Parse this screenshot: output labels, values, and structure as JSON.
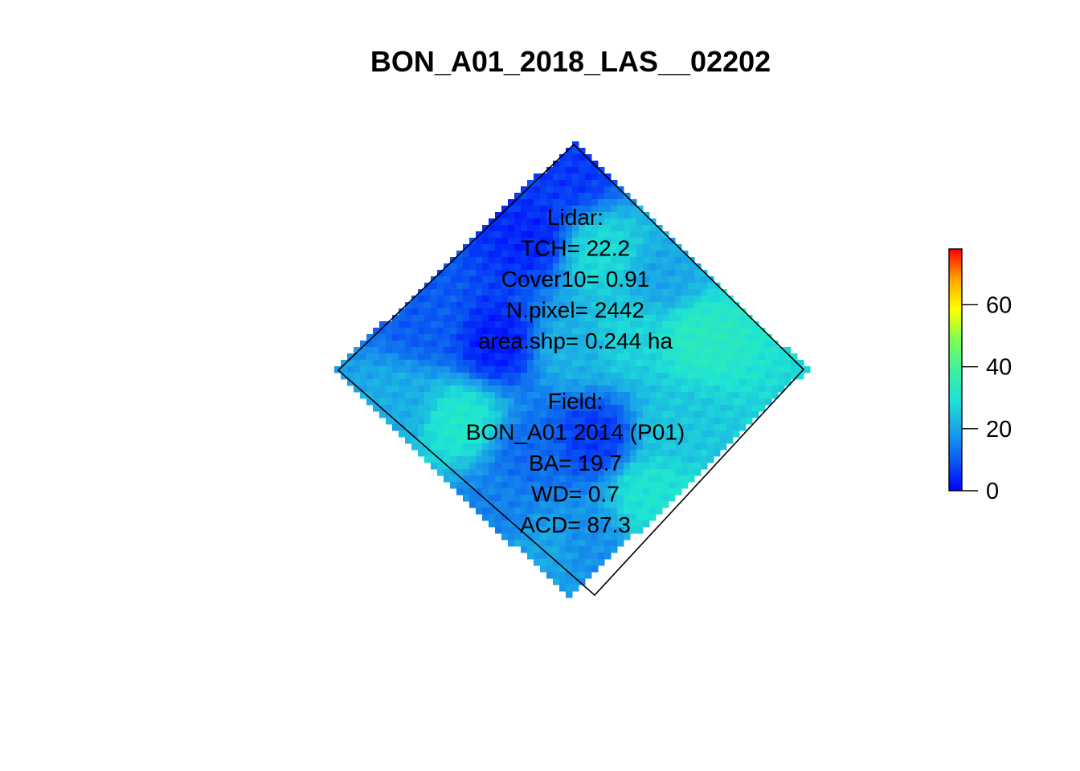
{
  "chart_data": {
    "type": "heatmap",
    "title": "BON_A01_2018_LAS__02202",
    "palette": [
      "#0000ff",
      "#0a5bf2",
      "#1aa3e8",
      "#1ee3d4",
      "#3df0a0",
      "#7dff50",
      "#ffff00",
      "#ffa500",
      "#ff0000"
    ],
    "colorbar": {
      "min": 0,
      "max": 78,
      "ticks": [
        0,
        20,
        40,
        60
      ]
    },
    "legend_placement": "right",
    "grid": false,
    "raster_hotspots": [
      {
        "u": 0.06,
        "v": 0.06,
        "value": 6
      },
      {
        "u": 0.12,
        "v": 0.3,
        "value": 4
      },
      {
        "u": 0.3,
        "v": 0.18,
        "value": 28
      },
      {
        "u": 0.28,
        "v": 0.6,
        "value": 3
      },
      {
        "u": 0.45,
        "v": 0.45,
        "value": 22
      },
      {
        "u": 0.55,
        "v": 0.3,
        "value": 27
      },
      {
        "u": 0.38,
        "v": 0.85,
        "value": 31
      },
      {
        "u": 0.7,
        "v": 0.15,
        "value": 33
      },
      {
        "u": 0.7,
        "v": 0.6,
        "value": 6
      },
      {
        "u": 0.6,
        "v": 0.78,
        "value": 12
      },
      {
        "u": 0.85,
        "v": 0.4,
        "value": 25
      },
      {
        "u": 0.92,
        "v": 0.85,
        "value": 17
      },
      {
        "u": 0.85,
        "v": 0.95,
        "value": 20
      },
      {
        "u": 0.95,
        "v": 0.6,
        "value": 30
      },
      {
        "u": 0.2,
        "v": 0.95,
        "value": 21
      },
      {
        "u": 0.5,
        "v": 0.1,
        "value": 20
      },
      {
        "u": 0.08,
        "v": 0.7,
        "value": 10
      },
      {
        "u": 0.65,
        "v": 0.95,
        "value": 15
      }
    ],
    "annotations": {
      "lidar": [
        "Lidar:",
        "TCH= 22.2",
        "Cover10= 0.91",
        "N.pixel= 2442",
        "area.shp= 0.244 ha"
      ],
      "field": [
        "Field:",
        "BON_A01 2014 (P01)",
        "BA= 19.7",
        "WD= 0.7",
        "ACD= 87.3"
      ]
    }
  }
}
